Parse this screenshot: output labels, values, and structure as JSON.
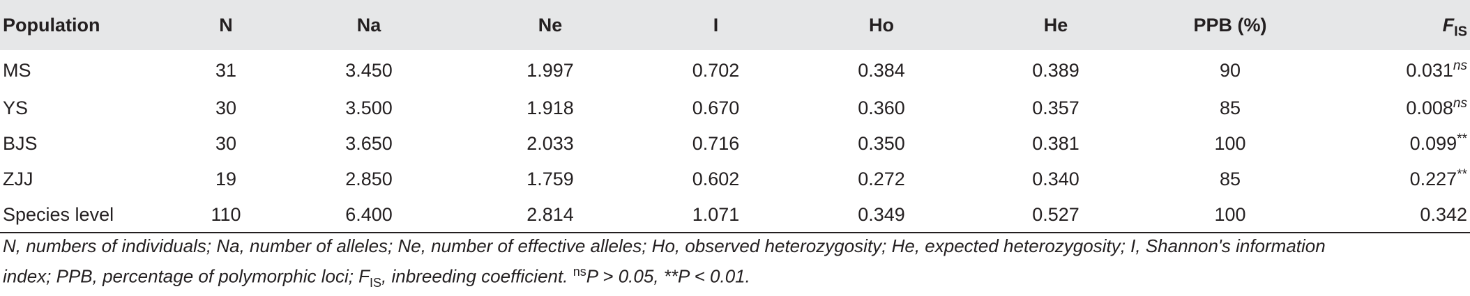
{
  "table": {
    "headers": [
      "Population",
      "N",
      "Na",
      "Ne",
      "I",
      "Ho",
      "He",
      "PPB (%)"
    ],
    "fis_header": {
      "main": "F",
      "sub": "IS"
    },
    "rows": [
      {
        "cells": [
          "MS",
          "31",
          "3.450",
          "1.997",
          "0.702",
          "0.384",
          "0.389",
          "90"
        ],
        "fis": "0.031",
        "sig": "ns"
      },
      {
        "cells": [
          "YS",
          "30",
          "3.500",
          "1.918",
          "0.670",
          "0.360",
          "0.357",
          "85"
        ],
        "fis": "0.008",
        "sig": "ns"
      },
      {
        "cells": [
          "BJS",
          "30",
          "3.650",
          "2.033",
          "0.716",
          "0.350",
          "0.381",
          "100"
        ],
        "fis": "0.099",
        "sig": "**"
      },
      {
        "cells": [
          "ZJJ",
          "19",
          "2.850",
          "1.759",
          "0.602",
          "0.272",
          "0.340",
          "85"
        ],
        "fis": "0.227",
        "sig": "**"
      },
      {
        "cells": [
          "Species level",
          "110",
          "6.400",
          "2.814",
          "1.071",
          "0.349",
          "0.527",
          "100"
        ],
        "fis": "0.342",
        "sig": ""
      }
    ]
  },
  "footnote": {
    "line1": "N, numbers of individuals; Na, number of alleles; Ne, number of effective alleles; Ho, observed heterozygosity; He, expected heterozygosity; I, Shannon's information",
    "line2_a": "index; PPB, percentage of polymorphic loci; F",
    "line2_sub": "IS",
    "line2_b": ", inbreeding coefficient. ",
    "ns_sup": "ns",
    "line2_c": "P > 0.05, **P < 0.01."
  }
}
